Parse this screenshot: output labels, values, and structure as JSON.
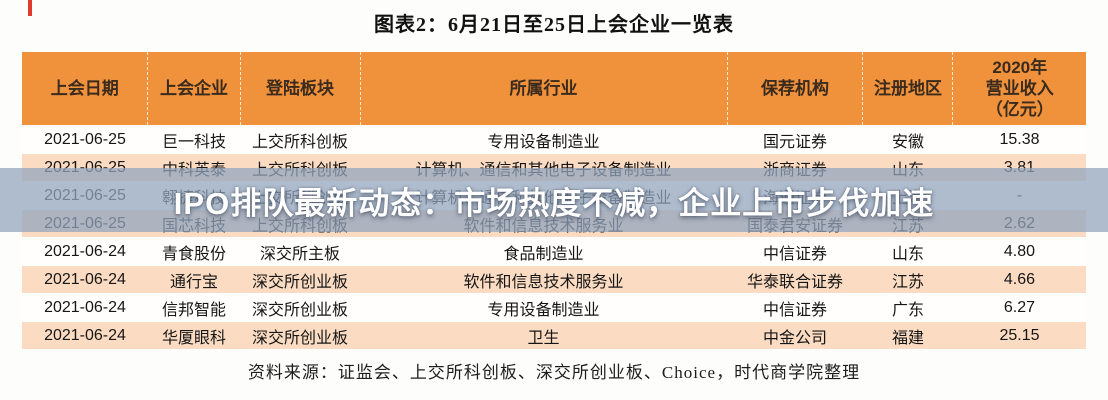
{
  "page": {
    "title": "图表2：6月21日至25日上会企业一览表",
    "source": "资料来源：证监会、上交所科创板、深交所创业板、Choice，时代商学院整理"
  },
  "overlay": {
    "headline": "IPO排队最新动态：市场热度不减，企业上市步伐加速"
  },
  "table": {
    "columns": [
      "上会日期",
      "上会企业",
      "登陆板块",
      "所属行业",
      "保荐机构",
      "注册地区",
      "2020年\n营业收入\n（亿元）"
    ],
    "column_widths_pct": [
      11.84,
      8.65,
      11.28,
      34.49,
      12.78,
      8.46,
      12.5
    ],
    "rows": [
      [
        "2021-06-25",
        "巨一科技",
        "上交所科创板",
        "专用设备制造业",
        "国元证券",
        "安徽",
        "15.38"
      ],
      [
        "2021-06-25",
        "中科英泰",
        "上交所科创板",
        "计算机、通信和其他电子设备制造业",
        "浙商证券",
        "山东",
        "3.81"
      ],
      [
        "2021-06-25",
        "翱捷科技",
        "上交所科创板",
        "计算机、通信和其他电子设备制造业",
        "海通证券",
        "上海",
        "-"
      ],
      [
        "2021-06-25",
        "国芯科技",
        "上交所科创板",
        "软件和信息技术服务业",
        "国泰君安证券",
        "江苏",
        "2.62"
      ],
      [
        "2021-06-24",
        "青食股份",
        "深交所主板",
        "食品制造业",
        "中信证券",
        "山东",
        "4.80"
      ],
      [
        "2021-06-24",
        "通行宝",
        "深交所创业板",
        "软件和信息技术服务业",
        "华泰联合证券",
        "江苏",
        "4.66"
      ],
      [
        "2021-06-24",
        "信邦智能",
        "深交所创业板",
        "专用设备制造业",
        "中信证券",
        "广东",
        "6.27"
      ],
      [
        "2021-06-24",
        "华厦眼科",
        "深交所创业板",
        "卫生",
        "中金公司",
        "福建",
        "25.15"
      ]
    ]
  },
  "colors": {
    "header_orange": "#f0913c",
    "row_alt_peach": "#fbdcc2",
    "overlay_band_blue": "#96a6be",
    "accent_red": "#e0392e"
  }
}
